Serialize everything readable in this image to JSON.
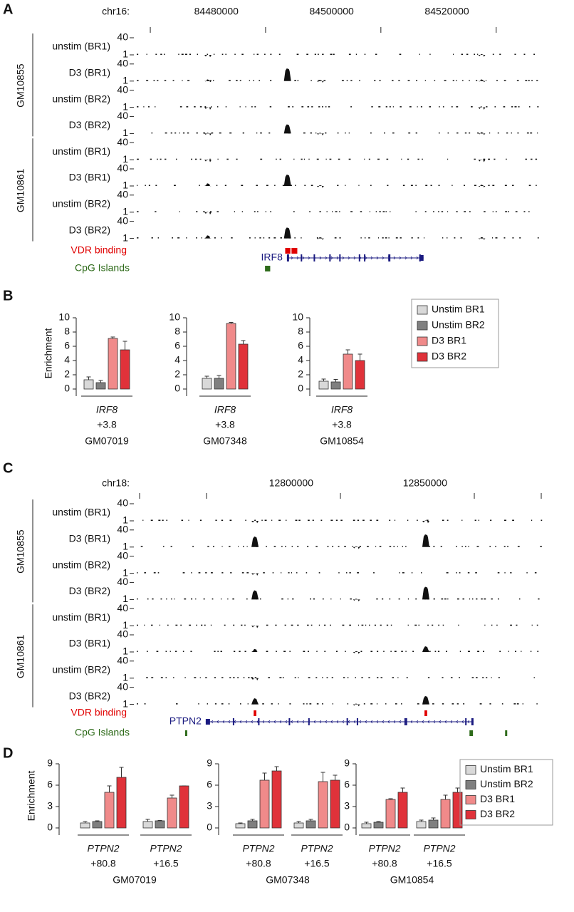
{
  "panel_labels": [
    "A",
    "B",
    "C",
    "D"
  ],
  "genome_panels": [
    {
      "chrom": "chr16:",
      "xlim": [
        84457400,
        84527200
      ],
      "xticks": [
        84480000,
        84500000,
        84520000
      ],
      "minor_xticks": [
        84460000
      ],
      "track_ylim": [
        1,
        40
      ],
      "track_yticks": [
        40,
        1
      ],
      "groups": [
        {
          "name": "GM10855",
          "tracks": [
            {
              "name": "unstim (BR1)",
              "peaks": [
                [
                  84470000,
                  2
                ],
                [
                  84517500,
                  3
                ]
              ]
            },
            {
              "name": "D3 (BR1)",
              "peaks": [
                [
                  84470000,
                  5
                ],
                [
                  84483800,
                  30
                ],
                [
                  84489500,
                  4
                ],
                [
                  84517500,
                  5
                ]
              ]
            },
            {
              "name": "unstim (BR2)",
              "peaks": [
                [
                  84470000,
                  2
                ],
                [
                  84517500,
                  2
                ]
              ]
            },
            {
              "name": "D3 (BR2)",
              "peaks": [
                [
                  84470000,
                  3
                ],
                [
                  84483800,
                  22
                ],
                [
                  84489500,
                  3
                ],
                [
                  84517500,
                  4
                ]
              ]
            }
          ]
        },
        {
          "name": "GM10861",
          "tracks": [
            {
              "name": "unstim (BR1)",
              "peaks": [
                [
                  84470000,
                  2
                ],
                [
                  84517500,
                  2
                ]
              ]
            },
            {
              "name": "D3 (BR1)",
              "peaks": [
                [
                  84470000,
                  7
                ],
                [
                  84483800,
                  27
                ],
                [
                  84489500,
                  3
                ],
                [
                  84517500,
                  4
                ]
              ]
            },
            {
              "name": "unstim (BR2)",
              "peaks": [
                [
                  84470000,
                  2
                ]
              ]
            },
            {
              "name": "D3 (BR2)",
              "peaks": [
                [
                  84470000,
                  8
                ],
                [
                  84483800,
                  26
                ],
                [
                  84489500,
                  4
                ],
                [
                  84517500,
                  4
                ]
              ]
            }
          ]
        }
      ],
      "vdr_label": "VDR binding",
      "vdr_regions": [
        [
          84483400,
          84484300
        ],
        [
          84484500,
          84485500
        ]
      ],
      "gene": "IRF8",
      "gene_range": [
        84483700,
        84507400
      ],
      "gene_strand": "+",
      "cpg_label": "CpG Islands",
      "cpg_regions": [
        [
          84479900,
          84480800
        ]
      ]
    },
    {
      "chrom": "chr18:",
      "xlim": [
        12723400,
        12875000
      ],
      "xticks": [
        12800000,
        12850000
      ],
      "minor_xticks": [
        12725000,
        12750000,
        12875000
      ],
      "track_ylim": [
        1,
        40
      ],
      "track_yticks": [
        40,
        1
      ],
      "groups": [
        {
          "name": "GM10855",
          "tracks": [
            {
              "name": "unstim (BR1)",
              "peaks": [
                [
                  12768100,
                  2
                ],
                [
                  12831900,
                  2
                ]
              ]
            },
            {
              "name": "D3 (BR1)",
              "peaks": [
                [
                  12768100,
                  25
                ],
                [
                  12806000,
                  3
                ],
                [
                  12831900,
                  30
                ]
              ]
            },
            {
              "name": "unstim (BR2)",
              "peaks": [
                [
                  12768100,
                  2
                ]
              ]
            },
            {
              "name": "D3 (BR2)",
              "peaks": [
                [
                  12768100,
                  22
                ],
                [
                  12806000,
                  3
                ],
                [
                  12831900,
                  30
                ]
              ]
            }
          ]
        },
        {
          "name": "GM10861",
          "tracks": [
            {
              "name": "unstim (BR1)",
              "peaks": [
                [
                  12768100,
                  2
                ]
              ]
            },
            {
              "name": "D3 (BR1)",
              "peaks": [
                [
                  12768100,
                  8
                ],
                [
                  12806000,
                  3
                ],
                [
                  12831900,
                  14
                ]
              ]
            },
            {
              "name": "unstim (BR2)",
              "peaks": [
                [
                  12768100,
                  2
                ]
              ]
            },
            {
              "name": "D3 (BR2)",
              "peaks": [
                [
                  12768100,
                  15
                ],
                [
                  12806000,
                  3
                ],
                [
                  12831900,
                  20
                ]
              ]
            }
          ]
        }
      ],
      "vdr_label": "VDR binding",
      "vdr_regions": [
        [
          12767600,
          12768600
        ],
        [
          12831400,
          12832400
        ]
      ],
      "gene": "PTPN2",
      "gene_range": [
        12749700,
        12849700
      ],
      "gene_strand": "-",
      "cpg_label": "CpG Islands",
      "cpg_regions": [
        [
          12742000,
          12742800
        ],
        [
          12848200,
          12849500
        ],
        [
          12861500,
          12862000
        ]
      ]
    }
  ],
  "chart_data": [
    {
      "type": "bar",
      "ylabel": "Enrichment",
      "ylim": [
        0,
        10
      ],
      "yticks": [
        0,
        2,
        4,
        6,
        8,
        10
      ],
      "category_genes": [
        "IRF8"
      ],
      "categories": [
        "+3.8"
      ],
      "xlabel": "GM07019",
      "series": [
        {
          "name": "Unstim BR1",
          "color": "#d9d9d9",
          "values": [
            1.3
          ],
          "errors": [
            0.4
          ]
        },
        {
          "name": "Unstim BR2",
          "color": "#7f7f7f",
          "values": [
            0.9
          ],
          "errors": [
            0.3
          ]
        },
        {
          "name": "D3 BR1",
          "color": "#f08a8a",
          "values": [
            7.1
          ],
          "errors": [
            0.2
          ]
        },
        {
          "name": "D3 BR2",
          "color": "#e0323a",
          "values": [
            5.5
          ],
          "errors": [
            1.2
          ]
        }
      ]
    },
    {
      "type": "bar",
      "ylim": [
        0,
        10
      ],
      "yticks": [
        0,
        2,
        4,
        6,
        8,
        10
      ],
      "category_genes": [
        "IRF8"
      ],
      "categories": [
        "+3.8"
      ],
      "xlabel": "GM07348",
      "series": [
        {
          "color": "#d9d9d9",
          "values": [
            1.5
          ],
          "errors": [
            0.3
          ]
        },
        {
          "color": "#7f7f7f",
          "values": [
            1.5
          ],
          "errors": [
            0.4
          ]
        },
        {
          "color": "#f08a8a",
          "values": [
            9.2
          ],
          "errors": [
            0.15
          ]
        },
        {
          "color": "#e0323a",
          "values": [
            6.3
          ],
          "errors": [
            0.5
          ]
        }
      ]
    },
    {
      "type": "bar",
      "ylim": [
        0,
        10
      ],
      "yticks": [
        0,
        2,
        4,
        6,
        8,
        10
      ],
      "category_genes": [
        "IRF8"
      ],
      "categories": [
        "+3.8"
      ],
      "xlabel": "GM10854",
      "series": [
        {
          "color": "#d9d9d9",
          "values": [
            1.1
          ],
          "errors": [
            0.3
          ]
        },
        {
          "color": "#7f7f7f",
          "values": [
            1.0
          ],
          "errors": [
            0.35
          ]
        },
        {
          "color": "#f08a8a",
          "values": [
            4.9
          ],
          "errors": [
            0.6
          ]
        },
        {
          "color": "#e0323a",
          "values": [
            4.0
          ],
          "errors": [
            0.9
          ]
        }
      ]
    },
    {
      "type": "bar",
      "ylabel": "Enrichment",
      "ylim": [
        0,
        9
      ],
      "yticks": [
        0,
        3,
        6,
        9
      ],
      "category_genes": [
        "PTPN2",
        "PTPN2"
      ],
      "categories": [
        "+80.8",
        "+16.5"
      ],
      "xlabel": "GM07019",
      "series": [
        {
          "name": "Unstim BR1",
          "color": "#d9d9d9",
          "values": [
            0.7,
            0.9
          ],
          "errors": [
            0.2,
            0.3
          ]
        },
        {
          "name": "Unstim BR2",
          "color": "#7f7f7f",
          "values": [
            0.9,
            1.0
          ],
          "errors": [
            0.1,
            0.05
          ]
        },
        {
          "name": "D3 BR1",
          "color": "#f08a8a",
          "values": [
            5.0,
            4.2
          ],
          "errors": [
            0.9,
            0.4
          ]
        },
        {
          "name": "D3 BR2",
          "color": "#e0323a",
          "values": [
            7.1,
            5.9
          ],
          "errors": [
            1.4,
            0
          ]
        }
      ]
    },
    {
      "type": "bar",
      "ylim": [
        0,
        9
      ],
      "yticks": [
        0,
        3,
        6,
        9
      ],
      "category_genes": [
        "PTPN2",
        "PTPN2"
      ],
      "categories": [
        "+80.8",
        "+16.5"
      ],
      "xlabel": "GM07348",
      "series": [
        {
          "color": "#d9d9d9",
          "values": [
            0.6,
            0.7
          ],
          "errors": [
            0.1,
            0.2
          ]
        },
        {
          "color": "#7f7f7f",
          "values": [
            1.0,
            1.0
          ],
          "errors": [
            0.2,
            0.2
          ]
        },
        {
          "color": "#f08a8a",
          "values": [
            6.7,
            6.5
          ],
          "errors": [
            1.0,
            1.3
          ]
        },
        {
          "color": "#e0323a",
          "values": [
            8.0,
            6.7
          ],
          "errors": [
            0.6,
            0.7
          ]
        }
      ]
    },
    {
      "type": "bar",
      "ylim": [
        0,
        9
      ],
      "yticks": [
        0,
        3,
        6,
        9
      ],
      "category_genes": [
        "PTPN2",
        "PTPN2"
      ],
      "categories": [
        "+80.8",
        "+16.5"
      ],
      "xlabel": "GM10854",
      "series": [
        {
          "color": "#d9d9d9",
          "values": [
            0.6,
            0.9
          ],
          "errors": [
            0.2,
            0.2
          ]
        },
        {
          "color": "#7f7f7f",
          "values": [
            0.8,
            1.1
          ],
          "errors": [
            0.1,
            0.3
          ]
        },
        {
          "color": "#f08a8a",
          "values": [
            4.0,
            4.0
          ],
          "errors": [
            0.1,
            0.6
          ]
        },
        {
          "color": "#e0323a",
          "values": [
            5.0,
            5.0
          ],
          "errors": [
            0.6,
            0.6
          ]
        }
      ]
    }
  ]
}
